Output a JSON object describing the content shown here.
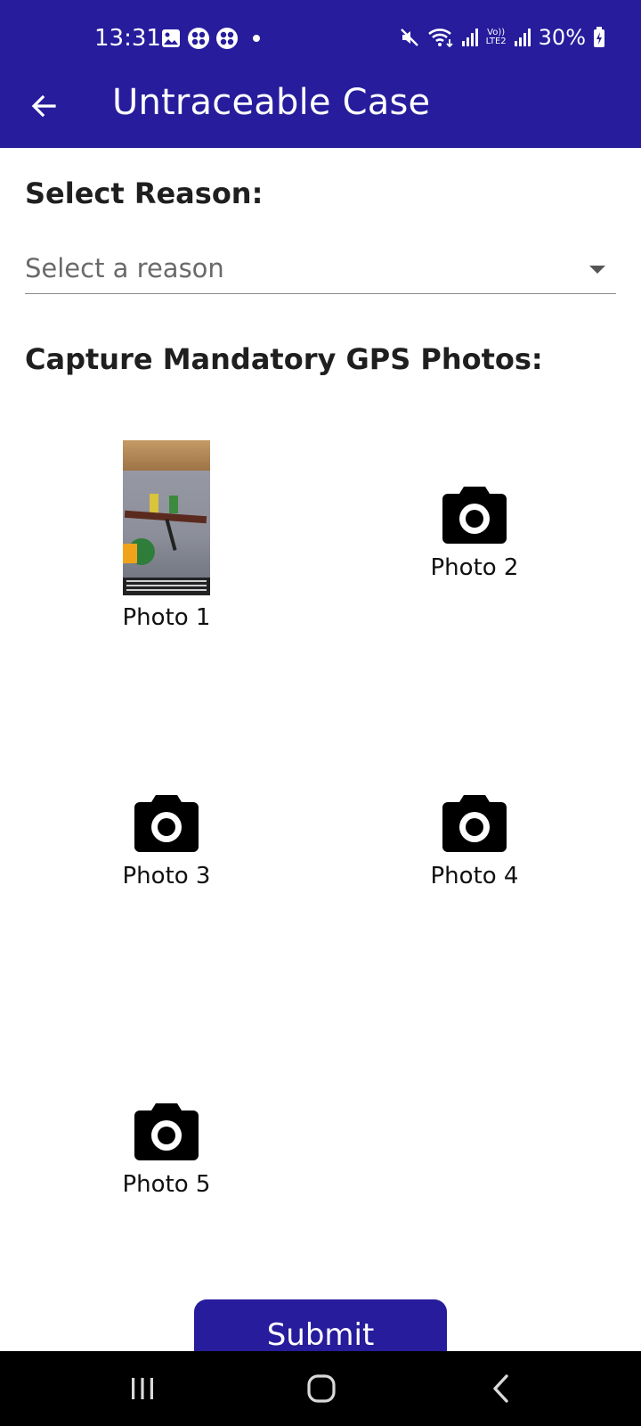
{
  "status_bar": {
    "time": "13:31",
    "network_badge_top": "Vo))",
    "network_badge_bottom": "LTE2",
    "battery": "30%"
  },
  "app_bar": {
    "title": "Untraceable Case",
    "back_icon": "arrow-left-icon"
  },
  "form": {
    "reason_label": "Select Reason:",
    "reason_select": {
      "placeholder": "Select a reason",
      "icon": "caret-down-icon"
    },
    "photos_label": "Capture Mandatory GPS Photos:",
    "photos": [
      {
        "label": "Photo 1",
        "state": "captured"
      },
      {
        "label": "Photo 2",
        "state": "empty",
        "icon": "camera-icon"
      },
      {
        "label": "Photo 3",
        "state": "empty",
        "icon": "camera-icon"
      },
      {
        "label": "Photo 4",
        "state": "empty",
        "icon": "camera-icon"
      },
      {
        "label": "Photo 5",
        "state": "empty",
        "icon": "camera-icon"
      }
    ],
    "submit_label": "Submit"
  },
  "nav_bar": {
    "recents_icon": "recent-apps-icon",
    "home_icon": "home-icon",
    "back_icon": "back-chevron-icon"
  },
  "colors": {
    "primary": "#261c9c",
    "background": "#ffffff",
    "navbar": "#000000"
  }
}
